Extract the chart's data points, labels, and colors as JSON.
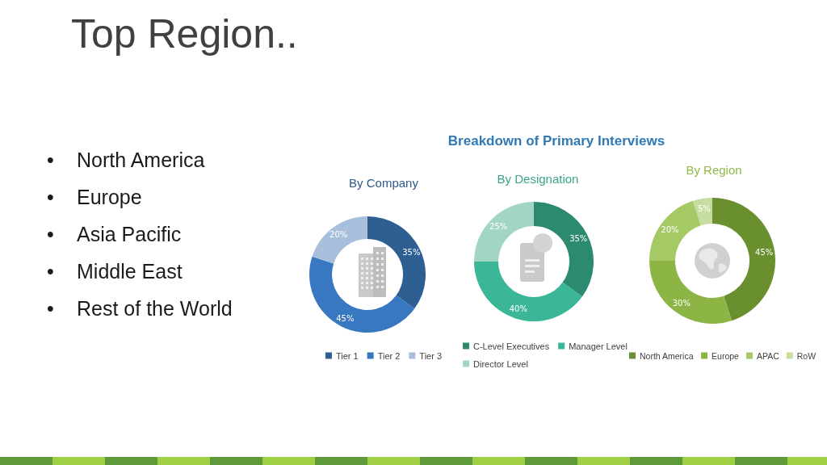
{
  "chart_data": [
    {
      "type": "other",
      "title": "Top Region..",
      "annotations": [
        "•\tNorth America",
        "•\tEurope",
        "•\tAsia Pacific",
        "•\tMiddle East",
        "•\tRest of the World"
      ]
    },
    {
      "type": "donut",
      "title": "By Company",
      "categories": [
        "Tier 1",
        "Tier 2",
        "Tier 3"
      ],
      "values": [
        35,
        45,
        20
      ],
      "colors": [
        "#2d5f93",
        "#3778c0",
        "#a8bfdc"
      ],
      "value_labels": [
        "35%",
        "45%",
        "20%"
      ],
      "legend": "bottom"
    },
    {
      "type": "donut",
      "title": "Breakdown of Primary Interviews",
      "subtitle": "By Designation",
      "categories": [
        "C-Level Executives",
        "Manager Level",
        "Director Level"
      ],
      "values": [
        35,
        40,
        25
      ],
      "colors": [
        "#2b8a70",
        "#3bb797",
        "#a3d5c4"
      ],
      "value_labels": [
        "35%",
        "40%",
        "25%"
      ],
      "legend": "bottom"
    },
    {
      "type": "donut",
      "title": "By Region",
      "categories": [
        "North America",
        "Europe",
        "APAC",
        "RoW"
      ],
      "values": [
        45,
        30,
        20,
        5
      ],
      "colors": [
        "#6a8f2f",
        "#8cb545",
        "#a5c965",
        "#c6dca0"
      ],
      "value_labels": [
        "45%",
        "30%",
        "20%",
        "5%"
      ],
      "legend": "bottom"
    }
  ]
}
